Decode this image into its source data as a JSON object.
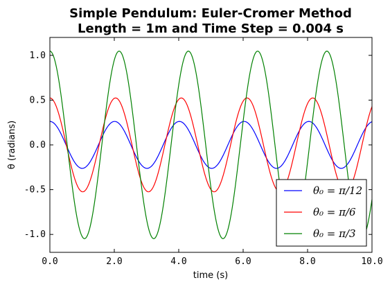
{
  "chart_data": {
    "type": "line",
    "title_lines": [
      "Simple Pendulum: Euler-Cromer Method",
      "Length = 1m and Time Step = 0.004 s"
    ],
    "xlabel": "time (s)",
    "ylabel": "θ (radians)",
    "xlim": [
      0,
      10
    ],
    "ylim": [
      -1.2,
      1.2
    ],
    "xticks": [
      "0.0",
      "2.0",
      "4.0",
      "6.0",
      "8.0",
      "10.0"
    ],
    "xtick_values": [
      0,
      2,
      4,
      6,
      8,
      10
    ],
    "yticks": [
      "1.0",
      "0.5",
      "0.0",
      "-0.5",
      "-1.0"
    ],
    "ytick_values": [
      1.0,
      0.5,
      0.0,
      -0.5,
      -1.0
    ],
    "grid": false,
    "legend_position": "bottom-right",
    "series": [
      {
        "name": "θ₀ = π/12",
        "color": "#0000ff",
        "amplitude": 0.262,
        "period": 2.01
      },
      {
        "name": "θ₀ = π/6",
        "color": "#ff0000",
        "amplitude": 0.524,
        "period": 2.04
      },
      {
        "name": "θ₀ = π/3",
        "color": "#008000",
        "amplitude": 1.047,
        "period": 2.15
      }
    ]
  }
}
